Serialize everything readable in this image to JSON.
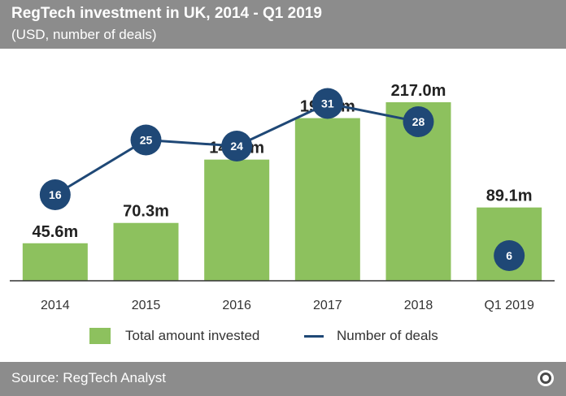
{
  "header": {
    "title": "RegTech investment in UK, 2014 - Q1 2019",
    "subtitle": "(USD, number of deals)"
  },
  "colors": {
    "bar": "#8dc15e",
    "line": "#1f4876",
    "marker": "#1f4876",
    "header_bg": "#8c8c8c",
    "text": "#222222"
  },
  "chart_data": {
    "type": "bar",
    "title": "RegTech investment in UK, 2014 - Q1 2019",
    "subtitle": "(USD, number of deals)",
    "categories": [
      "2014",
      "2015",
      "2016",
      "2017",
      "2018",
      "Q1 2019"
    ],
    "series": [
      {
        "name": "Total amount invested",
        "type": "bar",
        "values": [
          45.6,
          70.3,
          147.3,
          197.7,
          217.0,
          89.1
        ],
        "labels": [
          "45.6m",
          "70.3m",
          "147.3m",
          "197.7m",
          "217.0m",
          "89.1m"
        ]
      },
      {
        "name": "Number of deals",
        "type": "line",
        "values": [
          16,
          25,
          24,
          31,
          28,
          6
        ],
        "labels": [
          "16",
          "25",
          "24",
          "31",
          "28",
          "6"
        ],
        "connected_through_index": 4
      }
    ],
    "legend": "bottom",
    "grid": false
  },
  "legend": {
    "bar_label": "Total amount invested",
    "line_label": "Number of deals"
  },
  "footer": {
    "source": "Source: RegTech Analyst",
    "logo_icon": "circle-logo-icon"
  }
}
